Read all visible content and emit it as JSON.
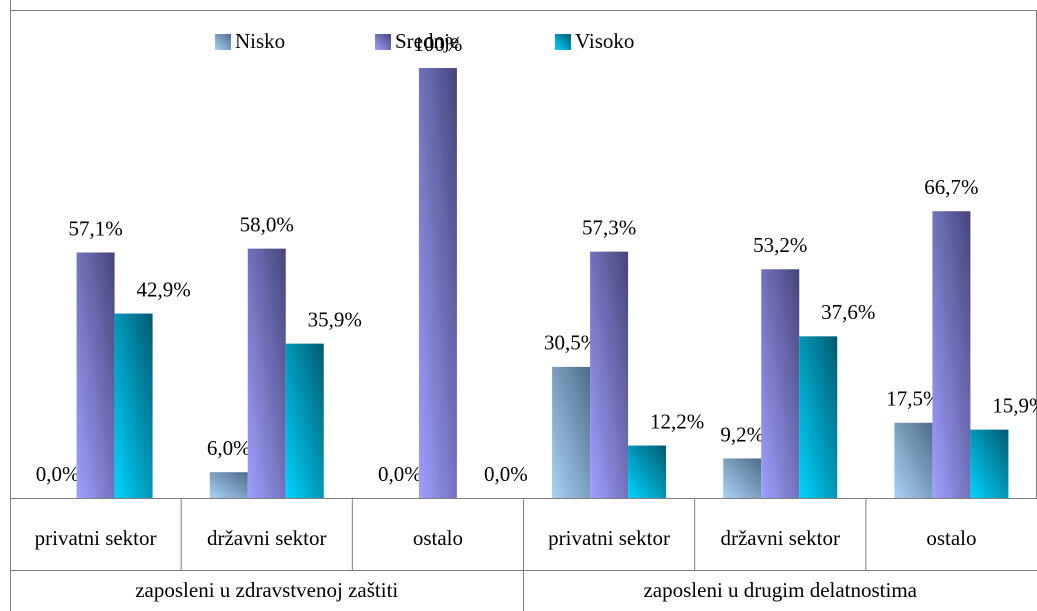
{
  "chart_data": {
    "type": "bar",
    "categories": [
      "privatni sektor",
      "državni sektor",
      "ostalo",
      "privatni sektor",
      "državni sektor",
      "ostalo"
    ],
    "category_groups": [
      "zaposleni u zdravstvenoj zaštiti",
      "zaposleni u drugim delatnostima"
    ],
    "series": [
      {
        "name": "Nisko",
        "color": "#8fb4dc",
        "values": [
          0.0,
          6.0,
          0.0,
          30.5,
          9.2,
          17.5
        ],
        "value_labels": [
          "0,0%",
          "6,0%",
          "0,0%",
          "30,5%",
          "9,2%",
          "17,5%"
        ]
      },
      {
        "name": "Srednje",
        "color": "#8f8ff0",
        "values": [
          57.1,
          58.0,
          100,
          57.3,
          53.2,
          66.7
        ],
        "value_labels": [
          "57,1%",
          "58,0%",
          "100%",
          "57,3%",
          "53,2%",
          "66,7%"
        ]
      },
      {
        "name": "Visoko",
        "color": "#00c8f0",
        "values": [
          42.9,
          35.9,
          0.0,
          12.2,
          37.6,
          15.9
        ],
        "value_labels": [
          "42,9%",
          "35,9%",
          "0,0%",
          "12,2%",
          "37,6%",
          "15,9%"
        ]
      }
    ],
    "ylim": [
      0,
      113.5
    ],
    "legend": "top"
  }
}
